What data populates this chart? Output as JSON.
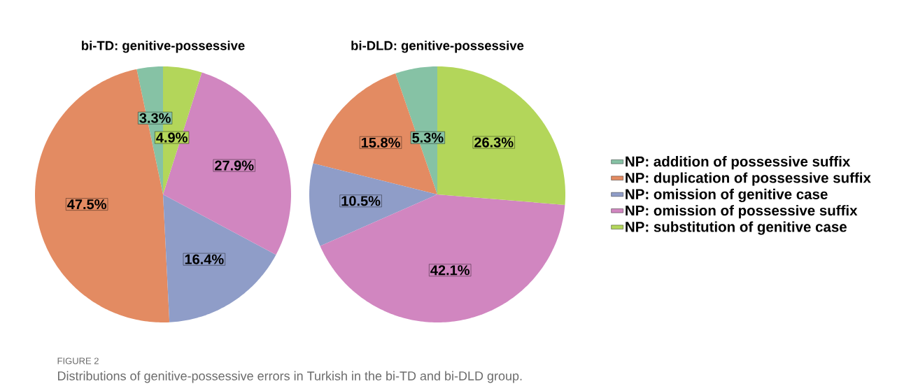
{
  "chart_data": [
    {
      "type": "pie",
      "title": "bi-TD: genitive-possessive",
      "categories": [
        null,
        null,
        null,
        null,
        null
      ],
      "values": [
        3.3,
        47.5,
        16.4,
        27.9,
        4.9
      ],
      "value_labels": [
        "3.3%",
        "47.5%",
        "16.4%",
        "27.9%",
        "4.9%"
      ],
      "colors": [
        "#86c2a5",
        "#e38b62",
        "#8f9dc8",
        "#d186c0",
        "#b3d65a"
      ],
      "annotations": [
        "FIGURE 2",
        "Distributions of genitive-possessive errors in Turkish in the bi-TD and bi-DLD group."
      ]
    },
    {
      "type": "pie",
      "title": "bi-DLD: genitive-possessive",
      "categories": [
        "NP: addition of possessive suffix",
        "NP: duplication of possessive suffix",
        "NP: omission of genitive case",
        "NP: omission of possessive suffix",
        "NP: substitution of genitive case"
      ],
      "values": [
        5.3,
        15.8,
        10.5,
        42.1,
        26.3
      ],
      "value_labels": [
        "5.3%",
        "15.8%",
        "10.5%",
        "42.1%",
        "26.3%"
      ],
      "colors": [
        "#86c2a5",
        "#e38b62",
        "#8f9dc8",
        "#d186c0",
        "#b3d65a"
      ],
      "legend": "right"
    }
  ]
}
